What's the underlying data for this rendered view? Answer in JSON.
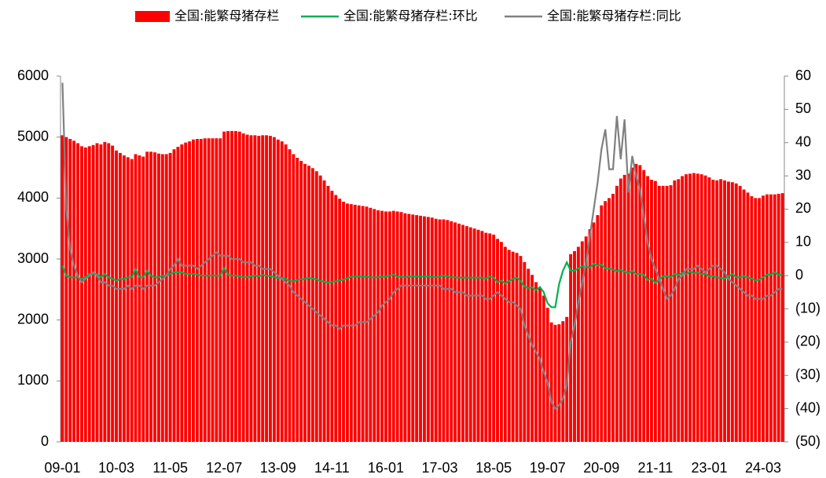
{
  "chart_data": {
    "type": "bar",
    "categories": [
      "09-01",
      null,
      null,
      null,
      null,
      null,
      null,
      null,
      null,
      null,
      null,
      null,
      null,
      null,
      "10-03",
      null,
      null,
      null,
      null,
      null,
      null,
      null,
      null,
      null,
      null,
      null,
      null,
      null,
      "11-05",
      null,
      null,
      null,
      null,
      null,
      null,
      null,
      null,
      null,
      null,
      null,
      null,
      null,
      "12-07",
      null,
      null,
      null,
      null,
      null,
      null,
      null,
      null,
      null,
      null,
      null,
      null,
      null,
      "13-09",
      null,
      null,
      null,
      null,
      null,
      null,
      null,
      null,
      null,
      null,
      null,
      null,
      null,
      "14-11",
      null,
      null,
      null,
      null,
      null,
      null,
      null,
      null,
      null,
      null,
      null,
      null,
      null,
      "16-01",
      null,
      null,
      null,
      null,
      null,
      null,
      null,
      null,
      null,
      null,
      null,
      null,
      null,
      "17-03",
      null,
      null,
      null,
      null,
      null,
      null,
      null,
      null,
      null,
      null,
      null,
      null,
      null,
      "18-05",
      null,
      null,
      null,
      null,
      null,
      null,
      null,
      null,
      null,
      null,
      null,
      null,
      null,
      "19-07",
      null,
      null,
      null,
      null,
      null,
      null,
      null,
      null,
      null,
      null,
      null,
      null,
      null,
      "20-09",
      null,
      null,
      null,
      null,
      null,
      null,
      null,
      null,
      null,
      null,
      null,
      null,
      null,
      "21-11",
      null,
      null,
      null,
      null,
      null,
      null,
      null,
      null,
      null,
      null,
      null,
      null,
      null,
      "23-01",
      null,
      null,
      null,
      null,
      null,
      null,
      null,
      null,
      null,
      null,
      null,
      null,
      null,
      "24-03",
      null,
      null,
      null,
      null,
      null
    ],
    "series": [
      {
        "name": "全国:能繁母猪存栏",
        "type": "bar",
        "color": "#ff0000",
        "values": [
          5030,
          5000,
          4970,
          4940,
          4900,
          4850,
          4830,
          4850,
          4870,
          4900,
          4880,
          4920,
          4900,
          4860,
          4780,
          4740,
          4700,
          4670,
          4640,
          4720,
          4700,
          4680,
          4760,
          4760,
          4750,
          4730,
          4720,
          4720,
          4740,
          4800,
          4840,
          4880,
          4910,
          4930,
          4960,
          4970,
          4970,
          4980,
          4980,
          4980,
          4980,
          4980,
          5090,
          5100,
          5100,
          5100,
          5090,
          5060,
          5040,
          5030,
          5030,
          5020,
          5030,
          5030,
          5020,
          5000,
          4960,
          4930,
          4880,
          4800,
          4720,
          4660,
          4610,
          4560,
          4530,
          4490,
          4440,
          4370,
          4290,
          4200,
          4120,
          4050,
          3990,
          3940,
          3910,
          3900,
          3890,
          3880,
          3870,
          3860,
          3840,
          3820,
          3800,
          3790,
          3780,
          3780,
          3790,
          3780,
          3770,
          3750,
          3740,
          3730,
          3720,
          3710,
          3700,
          3690,
          3680,
          3660,
          3650,
          3650,
          3640,
          3620,
          3600,
          3580,
          3560,
          3540,
          3520,
          3500,
          3480,
          3460,
          3430,
          3420,
          3400,
          3330,
          3280,
          3200,
          3150,
          3120,
          3100,
          3050,
          2950,
          2840,
          2740,
          2620,
          2530,
          2400,
          2200,
          1960,
          1920,
          1930,
          1980,
          2050,
          3080,
          3130,
          3200,
          3290,
          3370,
          3490,
          3600,
          3720,
          3880,
          3950,
          4000,
          4070,
          4200,
          4320,
          4380,
          4400,
          4500,
          4560,
          4540,
          4460,
          4360,
          4300,
          4280,
          4200,
          4200,
          4200,
          4210,
          4290,
          4310,
          4360,
          4390,
          4400,
          4410,
          4400,
          4390,
          4370,
          4340,
          4300,
          4290,
          4310,
          4290,
          4270,
          4260,
          4240,
          4200,
          4140,
          4090,
          4030,
          4000,
          4000,
          4040,
          4060,
          4060,
          4060,
          4070,
          4080
        ]
      },
      {
        "name": "全国:能繁母猪存栏:环比",
        "type": "line",
        "axis": "y2",
        "color": "#00b050",
        "values": [
          3,
          0,
          -0.5,
          -0.5,
          -0.5,
          -1,
          -0.5,
          0.5,
          0.5,
          0.5,
          -0.5,
          0.5,
          -0.5,
          -1,
          -1.5,
          -1,
          -1,
          -0.5,
          -0.5,
          2,
          -0.5,
          -0.5,
          1.5,
          0,
          -0.5,
          -0.5,
          0,
          0,
          0.5,
          1,
          1,
          1,
          0.5,
          0.5,
          0.5,
          0.3,
          0,
          0,
          0,
          0,
          0,
          0,
          2.3,
          0.3,
          0,
          0,
          -0.2,
          -0.5,
          -0.5,
          -0.2,
          0,
          -0.2,
          0.2,
          0,
          -0.2,
          -0.4,
          -0.8,
          -0.6,
          -1,
          -1.6,
          -1.7,
          -1.3,
          -1.1,
          -1,
          -0.7,
          -0.9,
          -1.1,
          -1.6,
          -1.8,
          -2.1,
          -1.9,
          -1.7,
          -1.5,
          -1.2,
          -0.8,
          -0.3,
          -0.3,
          -0.3,
          -0.3,
          -0.3,
          -0.5,
          -0.5,
          -0.5,
          -0.3,
          -0.3,
          0,
          0.3,
          -0.3,
          -0.3,
          -0.5,
          -0.3,
          -0.3,
          -0.3,
          -0.3,
          -0.3,
          -0.3,
          -0.3,
          -0.5,
          -0.3,
          0,
          -0.3,
          -0.5,
          -0.5,
          -0.6,
          -0.6,
          -0.6,
          -0.6,
          -0.6,
          -0.6,
          -0.6,
          -0.9,
          -0.3,
          -0.6,
          -2,
          -1.5,
          -2.4,
          -1.6,
          -1,
          -0.6,
          -1.6,
          -3.3,
          -3.7,
          -3.5,
          -4.4,
          -3.4,
          -5,
          -8.3,
          -9.5,
          -9.5,
          -2.5,
          1.5,
          4,
          1.5,
          1.5,
          2.2,
          2.8,
          2.7,
          2.4,
          3.6,
          3,
          3.3,
          2.2,
          2.1,
          1.8,
          1.3,
          1.7,
          1.2,
          0.8,
          1.4,
          0.5,
          0.5,
          0.3,
          -1.3,
          -0.9,
          -2.2,
          -1.2,
          -0.2,
          -0.2,
          -0.5,
          0.5,
          0.2,
          0.8,
          0.5,
          1.2,
          0.7,
          0.9,
          0.5,
          0.5,
          -0.2,
          -0.2,
          -0.5,
          -0.7,
          -0.9,
          -0.2,
          0.5,
          -0.5,
          -0.5,
          -0.2,
          -0.5,
          -0.9,
          -1.4,
          -1.2,
          -0.5,
          0.3,
          0.3,
          1,
          0.2,
          0.2
        ]
      },
      {
        "name": "全国:能繁母猪存栏:同比",
        "type": "line",
        "axis": "y2",
        "color": "#808080",
        "values": [
          58,
          20,
          8,
          3,
          0,
          -2,
          -1,
          0,
          1,
          0,
          -2,
          -2,
          -3,
          -3,
          -4,
          -4,
          -4,
          -3,
          -4,
          -3,
          -3,
          -4,
          -3,
          -3,
          -3,
          -2,
          -1,
          0,
          2,
          3,
          5,
          3,
          3,
          3,
          3,
          2,
          3,
          4,
          5,
          6,
          7,
          6,
          6,
          6,
          5,
          5,
          5,
          4,
          4,
          4,
          3,
          3,
          2,
          2,
          2,
          1,
          0,
          -1,
          -2,
          -3,
          -5,
          -6,
          -7,
          -8,
          -9,
          -10,
          -11,
          -12,
          -13,
          -14,
          -15,
          -15,
          -16,
          -15,
          -15,
          -15,
          -15,
          -14,
          -14,
          -14,
          -13,
          -12,
          -11,
          -9,
          -8,
          -7,
          -5,
          -4,
          -3,
          -3,
          -3,
          -3,
          -3,
          -3,
          -3,
          -3,
          -3,
          -3,
          -3,
          -4,
          -4,
          -4,
          -5,
          -5,
          -5,
          -6,
          -6,
          -6,
          -6,
          -6,
          -7,
          -7,
          -6,
          -5,
          -6,
          -7,
          -8,
          -8,
          -9,
          -10,
          -15,
          -18,
          -21,
          -23,
          -25,
          -29,
          -32,
          -38,
          -40,
          -39,
          -37,
          -33,
          -20,
          -15,
          -8,
          -2,
          4,
          12,
          20,
          28,
          38,
          44,
          32,
          32,
          48,
          35,
          47,
          25,
          36,
          30,
          26,
          18,
          10,
          5,
          2,
          -1,
          -4,
          -7,
          -6,
          -4,
          -1,
          0,
          2,
          2,
          2,
          3,
          2,
          1,
          2,
          3,
          3,
          2,
          1,
          -1,
          -2,
          -3,
          -4,
          -5,
          -6,
          -6,
          -7,
          -7,
          -7,
          -6,
          -6,
          -5,
          -4,
          -4
        ]
      }
    ],
    "ylim": [
      0,
      6000
    ],
    "yticks": [
      0,
      1000,
      2000,
      3000,
      4000,
      5000,
      6000
    ],
    "y2lim": [
      -50,
      60
    ],
    "y2ticks": [
      {
        "value": -50,
        "label": "(50)"
      },
      {
        "value": -40,
        "label": "(40)"
      },
      {
        "value": -30,
        "label": "(30)"
      },
      {
        "value": -20,
        "label": "(20)"
      },
      {
        "value": -10,
        "label": "(10)"
      },
      0,
      10,
      20,
      30,
      40,
      50,
      60
    ],
    "legend": "top"
  }
}
